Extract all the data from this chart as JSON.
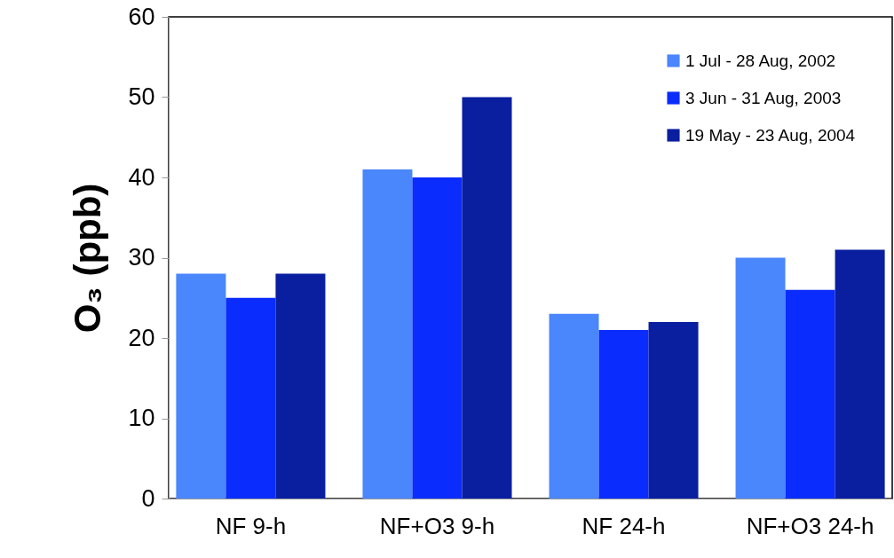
{
  "chart_data": {
    "type": "bar",
    "ylabel": "O₃ (ppb)",
    "categories": [
      "NF 9-h",
      "NF+O3 9-h",
      "NF 24-h",
      "NF+O3 24-h"
    ],
    "series": [
      {
        "name": "1 Jul - 28 Aug, 2002",
        "color": "#4a86fc",
        "values": [
          28,
          41,
          23,
          30
        ]
      },
      {
        "name": "3 Jun - 31 Aug, 2003",
        "color": "#0a2cfc",
        "values": [
          25,
          40,
          21,
          26
        ]
      },
      {
        "name": "19 May - 23 Aug, 2004",
        "color": "#0a1ea0",
        "values": [
          28,
          50,
          22,
          31
        ]
      }
    ],
    "ylim": [
      0,
      60
    ],
    "yticks": [
      0,
      10,
      20,
      30,
      40,
      50,
      60
    ],
    "grid": false,
    "legend": "top right"
  }
}
